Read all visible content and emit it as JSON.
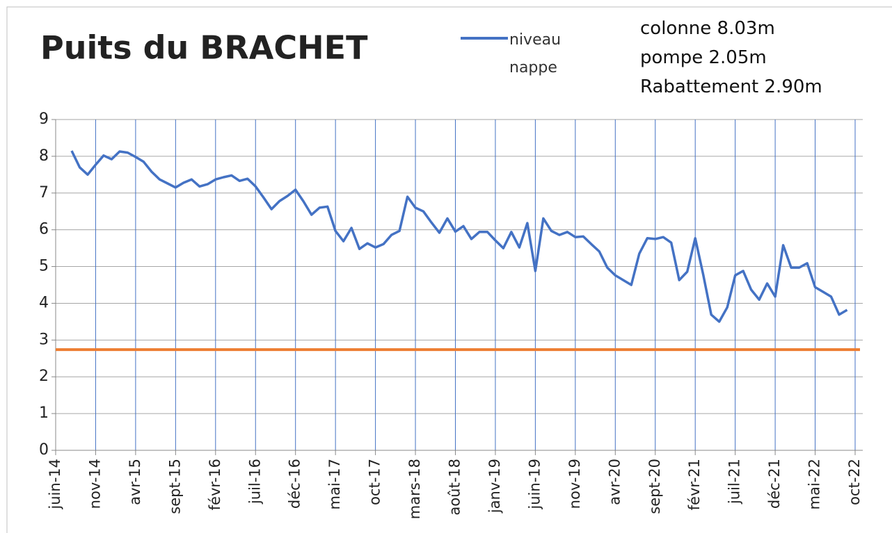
{
  "chart_data": {
    "type": "line",
    "title": "Puits du BRACHET",
    "annotations": [
      "colonne 8.03m",
      "pompe 2.05m",
      "Rabattement 2.90m"
    ],
    "categories": [
      "juin-14",
      null,
      null,
      null,
      null,
      "nov-14",
      null,
      null,
      null,
      null,
      "avr-15",
      null,
      null,
      null,
      null,
      "sept-15",
      null,
      null,
      null,
      null,
      "févr-16",
      null,
      null,
      null,
      null,
      "juil-16",
      null,
      null,
      null,
      null,
      "déc-16",
      null,
      null,
      null,
      null,
      "mai-17",
      null,
      null,
      null,
      null,
      "oct-17",
      null,
      null,
      null,
      null,
      "mars-18",
      null,
      null,
      null,
      null,
      "août-18",
      null,
      null,
      null,
      null,
      "janv-19",
      null,
      null,
      null,
      null,
      "juin-19",
      null,
      null,
      null,
      null,
      "nov-19",
      null,
      null,
      null,
      null,
      "avr-20",
      null,
      null,
      null,
      null,
      "sept-20",
      null,
      null,
      null,
      null,
      "févr-21",
      null,
      null,
      null,
      null,
      "juil-21",
      null,
      null,
      null,
      null,
      "déc-21",
      null,
      null,
      null,
      null,
      "mai-22",
      null,
      null,
      null,
      null,
      "oct-22"
    ],
    "series": [
      {
        "name": "niveau nappe",
        "color": "#4472c4",
        "values": [
          null,
          null,
          8.15,
          7.7,
          7.5,
          7.77,
          8.02,
          7.92,
          8.13,
          8.1,
          7.98,
          7.85,
          7.58,
          7.37,
          7.26,
          7.15,
          7.28,
          7.37,
          7.18,
          7.24,
          7.37,
          7.43,
          7.48,
          7.33,
          7.39,
          7.18,
          6.88,
          6.56,
          6.78,
          6.92,
          7.09,
          6.77,
          6.41,
          6.6,
          6.63,
          5.97,
          5.69,
          6.05,
          5.48,
          5.63,
          5.52,
          5.61,
          5.86,
          5.97,
          6.9,
          6.6,
          6.5,
          6.2,
          5.92,
          6.31,
          5.95,
          6.1,
          5.75,
          5.94,
          5.94,
          5.71,
          5.5,
          5.94,
          5.52,
          6.18,
          4.88,
          6.31,
          5.97,
          5.86,
          5.94,
          5.8,
          5.82,
          5.61,
          5.41,
          4.97,
          4.76,
          4.63,
          4.5,
          5.35,
          5.77,
          5.75,
          5.8,
          5.65,
          4.63,
          4.86,
          5.77,
          4.78,
          3.69,
          3.5,
          3.89,
          4.76,
          4.88,
          4.37,
          4.1,
          4.54,
          4.18,
          5.58,
          4.97,
          4.97,
          5.09,
          4.44,
          4.31,
          4.18,
          3.69,
          3.82,
          null
        ]
      }
    ],
    "threshold": {
      "value": 2.74,
      "color": "#ed7d31"
    },
    "ylim": [
      0,
      9
    ],
    "yticks": [
      0,
      1,
      2,
      3,
      4,
      5,
      6,
      7,
      8,
      9
    ],
    "grid": true,
    "grid_color_x": "#4472c4",
    "grid_color_y": "#a6a6a6"
  }
}
